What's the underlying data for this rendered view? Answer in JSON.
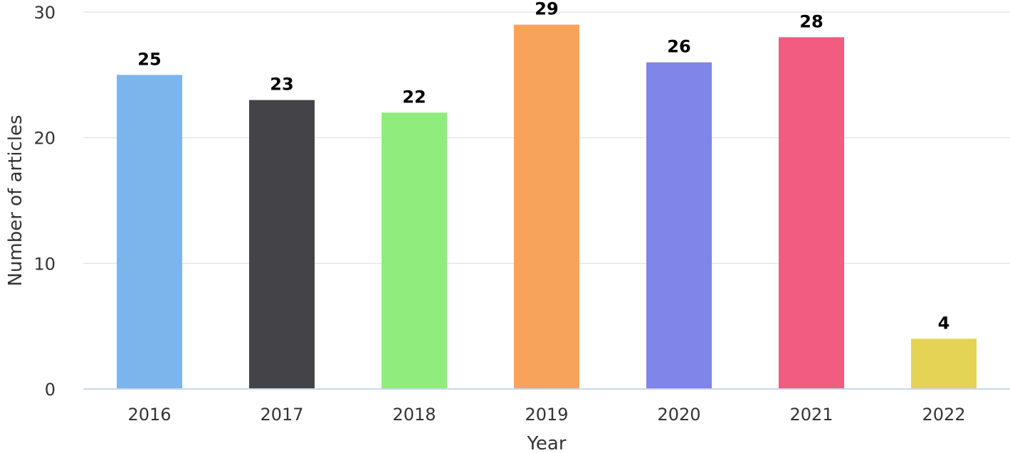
{
  "chart_data": {
    "type": "bar",
    "categories": [
      "2016",
      "2017",
      "2018",
      "2019",
      "2020",
      "2021",
      "2022"
    ],
    "values": [
      25,
      23,
      22,
      29,
      26,
      28,
      4
    ],
    "data_labels": [
      "25",
      "23",
      "22",
      "29",
      "26",
      "28",
      "4"
    ],
    "colors": [
      "#7cb5ec",
      "#434348",
      "#90ed7d",
      "#f7a35c",
      "#8085e9",
      "#f15c80",
      "#e4d354"
    ],
    "title": "",
    "xlabel": "Year",
    "ylabel": "Number of articles",
    "ylim": [
      0,
      30
    ],
    "yticks": [
      0,
      10,
      20,
      30
    ],
    "ytick_labels": [
      "0",
      "10",
      "20",
      "30"
    ],
    "grid": true,
    "legend": "none"
  }
}
